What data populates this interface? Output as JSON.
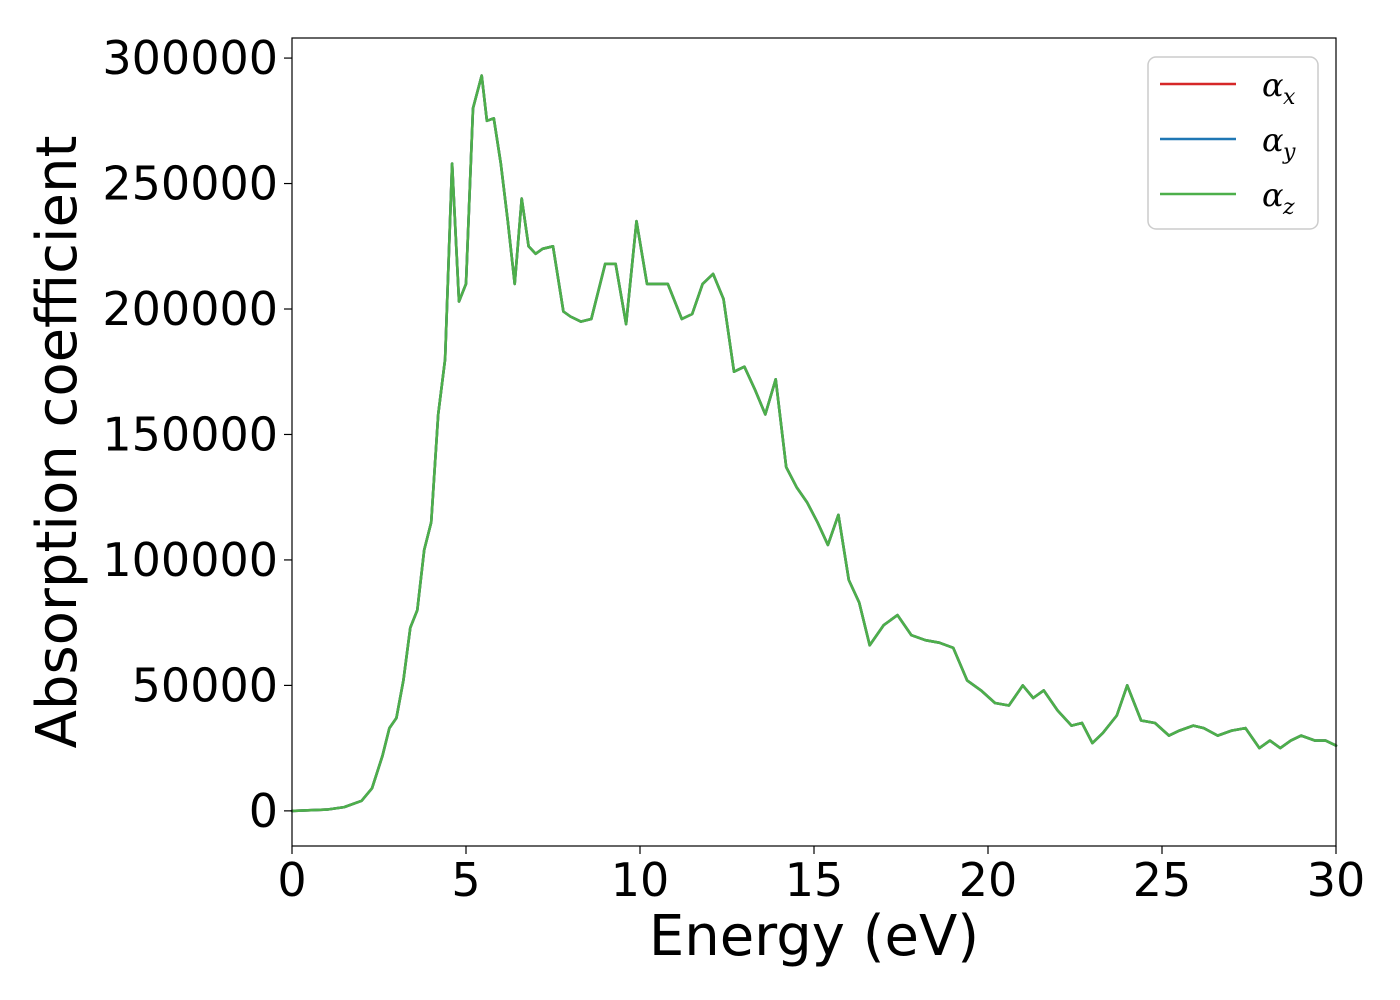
{
  "chart_data": {
    "type": "line",
    "title": "",
    "xlabel": "Energy (eV)",
    "ylabel": "Absorption coefficient",
    "xlim": [
      0,
      30
    ],
    "ylim": [
      -14000,
      308000
    ],
    "xticks": [
      0,
      5,
      10,
      15,
      20,
      25,
      30
    ],
    "xtick_labels": [
      "0",
      "5",
      "10",
      "15",
      "20",
      "25",
      "30"
    ],
    "yticks": [
      0,
      50000,
      100000,
      150000,
      200000,
      250000,
      300000
    ],
    "ytick_labels": [
      "0",
      "50000",
      "100000",
      "150000",
      "200000",
      "250000",
      "300000"
    ],
    "grid": false,
    "legend_position": "top-right",
    "x": [
      0,
      1,
      1.5,
      2,
      2.3,
      2.6,
      2.8,
      3.0,
      3.2,
      3.4,
      3.6,
      3.8,
      4.0,
      4.2,
      4.4,
      4.6,
      4.8,
      5.0,
      5.2,
      5.45,
      5.6,
      5.8,
      6.0,
      6.2,
      6.4,
      6.6,
      6.8,
      7.0,
      7.2,
      7.5,
      7.8,
      8.0,
      8.3,
      8.6,
      9.0,
      9.3,
      9.6,
      9.9,
      10.2,
      10.5,
      10.8,
      11.2,
      11.5,
      11.8,
      12.1,
      12.4,
      12.7,
      13.0,
      13.3,
      13.6,
      13.9,
      14.2,
      14.5,
      14.8,
      15.1,
      15.4,
      15.7,
      16.0,
      16.3,
      16.6,
      17.0,
      17.4,
      17.8,
      18.2,
      18.6,
      19.0,
      19.4,
      19.8,
      20.2,
      20.6,
      21.0,
      21.3,
      21.6,
      22.0,
      22.4,
      22.7,
      23.0,
      23.3,
      23.7,
      24.0,
      24.4,
      24.8,
      25.2,
      25.5,
      25.9,
      26.2,
      26.6,
      27.0,
      27.4,
      27.8,
      28.1,
      28.4,
      28.7,
      29.0,
      29.4,
      29.7,
      30.0
    ],
    "series": [
      {
        "name": "α_x",
        "label_main": "α",
        "label_sub": "x",
        "color": "#d62728",
        "values": [
          0,
          500,
          1500,
          4000,
          9000,
          22000,
          33000,
          37000,
          52000,
          73000,
          80000,
          104000,
          115000,
          158000,
          180000,
          258000,
          203000,
          210000,
          280000,
          293000,
          275000,
          276000,
          258000,
          235000,
          210000,
          244000,
          225000,
          222000,
          224000,
          225000,
          199000,
          197000,
          195000,
          196000,
          218000,
          218000,
          194000,
          235000,
          210000,
          210000,
          210000,
          196000,
          198000,
          210000,
          214000,
          204000,
          175000,
          177000,
          168000,
          158000,
          172000,
          137000,
          129000,
          123000,
          115000,
          106000,
          118000,
          92000,
          83000,
          66000,
          74000,
          78000,
          70000,
          68000,
          67000,
          65000,
          52000,
          48000,
          43000,
          42000,
          50000,
          45000,
          48000,
          40000,
          34000,
          35000,
          27000,
          31000,
          38000,
          50000,
          36000,
          35000,
          30000,
          32000,
          34000,
          33000,
          30000,
          32000,
          33000,
          25000,
          28000,
          25000,
          28000,
          30000,
          28000,
          28000,
          26000
        ]
      },
      {
        "name": "α_y",
        "label_main": "α",
        "label_sub": "y",
        "color": "#1f77b4",
        "values": [
          0,
          500,
          1500,
          4000,
          9000,
          22000,
          33000,
          37000,
          52000,
          73000,
          80000,
          104000,
          115000,
          158000,
          180000,
          258000,
          203000,
          210000,
          280000,
          293000,
          275000,
          276000,
          258000,
          235000,
          210000,
          244000,
          225000,
          222000,
          224000,
          225000,
          199000,
          197000,
          195000,
          196000,
          218000,
          218000,
          194000,
          235000,
          210000,
          210000,
          210000,
          196000,
          198000,
          210000,
          214000,
          204000,
          175000,
          177000,
          168000,
          158000,
          172000,
          137000,
          129000,
          123000,
          115000,
          106000,
          118000,
          92000,
          83000,
          66000,
          74000,
          78000,
          70000,
          68000,
          67000,
          65000,
          52000,
          48000,
          43000,
          42000,
          50000,
          45000,
          48000,
          40000,
          34000,
          35000,
          27000,
          31000,
          38000,
          50000,
          36000,
          35000,
          30000,
          32000,
          34000,
          33000,
          30000,
          32000,
          33000,
          25000,
          28000,
          25000,
          28000,
          30000,
          28000,
          28000,
          26000
        ]
      },
      {
        "name": "α_z",
        "label_main": "α",
        "label_sub": "z",
        "color": "#4daf4a",
        "values": [
          0,
          500,
          1500,
          4000,
          9000,
          22000,
          33000,
          37000,
          52000,
          73000,
          80000,
          104000,
          115000,
          158000,
          180000,
          258000,
          203000,
          210000,
          280000,
          293000,
          275000,
          276000,
          258000,
          235000,
          210000,
          244000,
          225000,
          222000,
          224000,
          225000,
          199000,
          197000,
          195000,
          196000,
          218000,
          218000,
          194000,
          235000,
          210000,
          210000,
          210000,
          196000,
          198000,
          210000,
          214000,
          204000,
          175000,
          177000,
          168000,
          158000,
          172000,
          137000,
          129000,
          123000,
          115000,
          106000,
          118000,
          92000,
          83000,
          66000,
          74000,
          78000,
          70000,
          68000,
          67000,
          65000,
          52000,
          48000,
          43000,
          42000,
          50000,
          45000,
          48000,
          40000,
          34000,
          35000,
          27000,
          31000,
          38000,
          50000,
          36000,
          35000,
          30000,
          32000,
          34000,
          33000,
          30000,
          32000,
          33000,
          25000,
          28000,
          25000,
          28000,
          30000,
          28000,
          28000,
          26000
        ]
      }
    ]
  }
}
